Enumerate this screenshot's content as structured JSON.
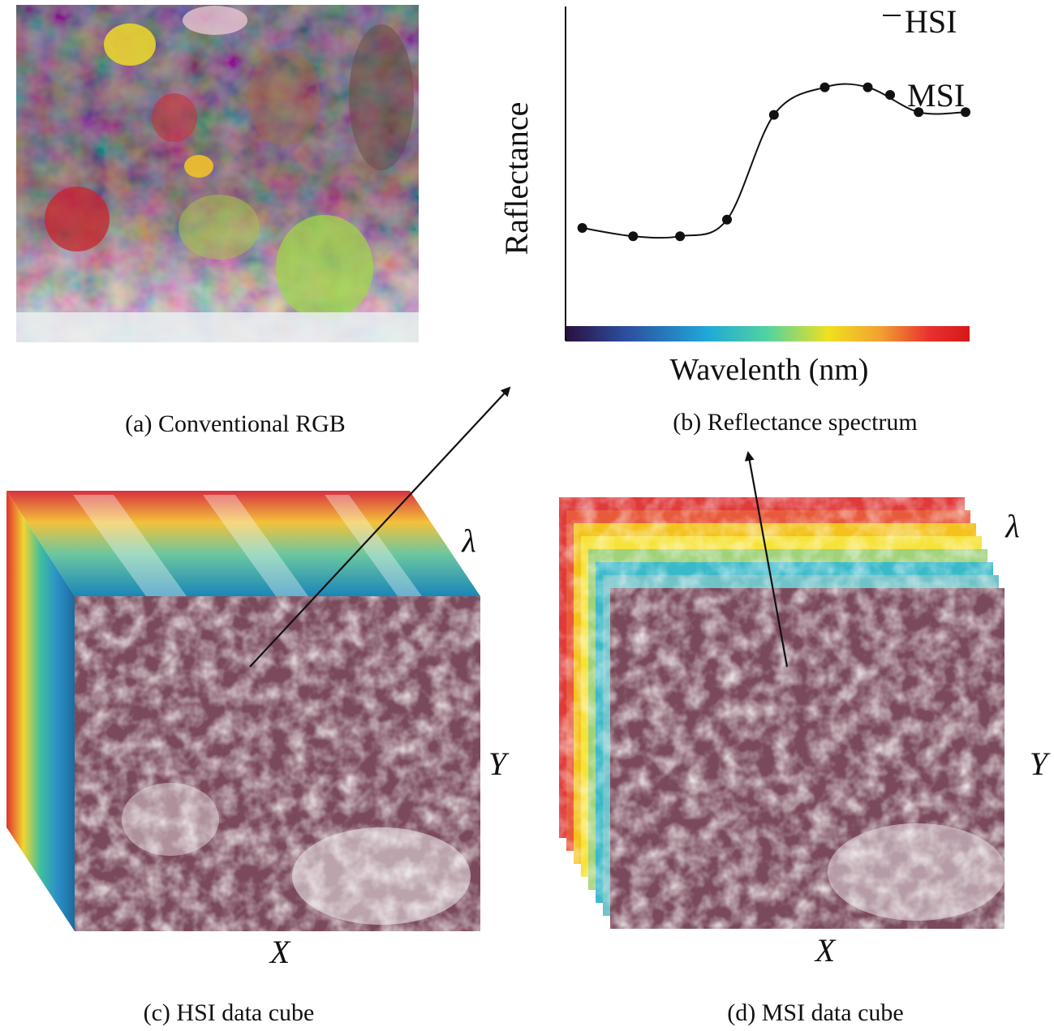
{
  "panels": {
    "a": {
      "caption": "(a) Conventional RGB",
      "image": "coral-reef-rgb-photo"
    },
    "b": {
      "caption": "(b) Reflectance spectrum"
    },
    "c": {
      "caption": "(c) HSI data cube",
      "image": "coral-reef-grayscale-band",
      "axis_x": "X",
      "axis_y": "Y",
      "axis_lambda": "λ"
    },
    "d": {
      "caption": "(d) MSI data cube",
      "image": "coral-reef-grayscale-band",
      "axis_x": "X",
      "axis_y": "Y",
      "axis_lambda": "λ",
      "band_colors": [
        "#e03a3a",
        "#e85a3c",
        "#f4c21c",
        "#f6e33a",
        "#9fd27a",
        "#3ab9c9",
        "#6fc2c7",
        "#7f4a63"
      ]
    }
  },
  "chart_data": {
    "type": "line",
    "xlabel": "Wavelenth (nm)",
    "ylabel": "Raflectance",
    "legend": {
      "placement": "top-right",
      "entries": [
        {
          "name": "HSI",
          "marker": "line"
        },
        {
          "name": "MSI",
          "marker": "dot"
        }
      ]
    },
    "msi_points": [
      [
        0.02,
        0.35
      ],
      [
        0.15,
        0.32
      ],
      [
        0.27,
        0.32
      ],
      [
        0.39,
        0.38
      ],
      [
        0.51,
        0.76
      ],
      [
        0.64,
        0.86
      ],
      [
        0.75,
        0.86
      ],
      [
        0.88,
        0.77
      ],
      [
        1.0,
        0.77
      ]
    ],
    "xlim": [
      0,
      1
    ],
    "ylim": [
      0,
      1
    ],
    "colorbar": [
      "#2a1140",
      "#2d4fa0",
      "#1fa8d8",
      "#53d3a0",
      "#f0e020",
      "#f2a030",
      "#e83030",
      "#d81818"
    ],
    "grid": false
  },
  "colors": {
    "cube_pixel": "#7a4a5c",
    "arrow": "#111111"
  }
}
